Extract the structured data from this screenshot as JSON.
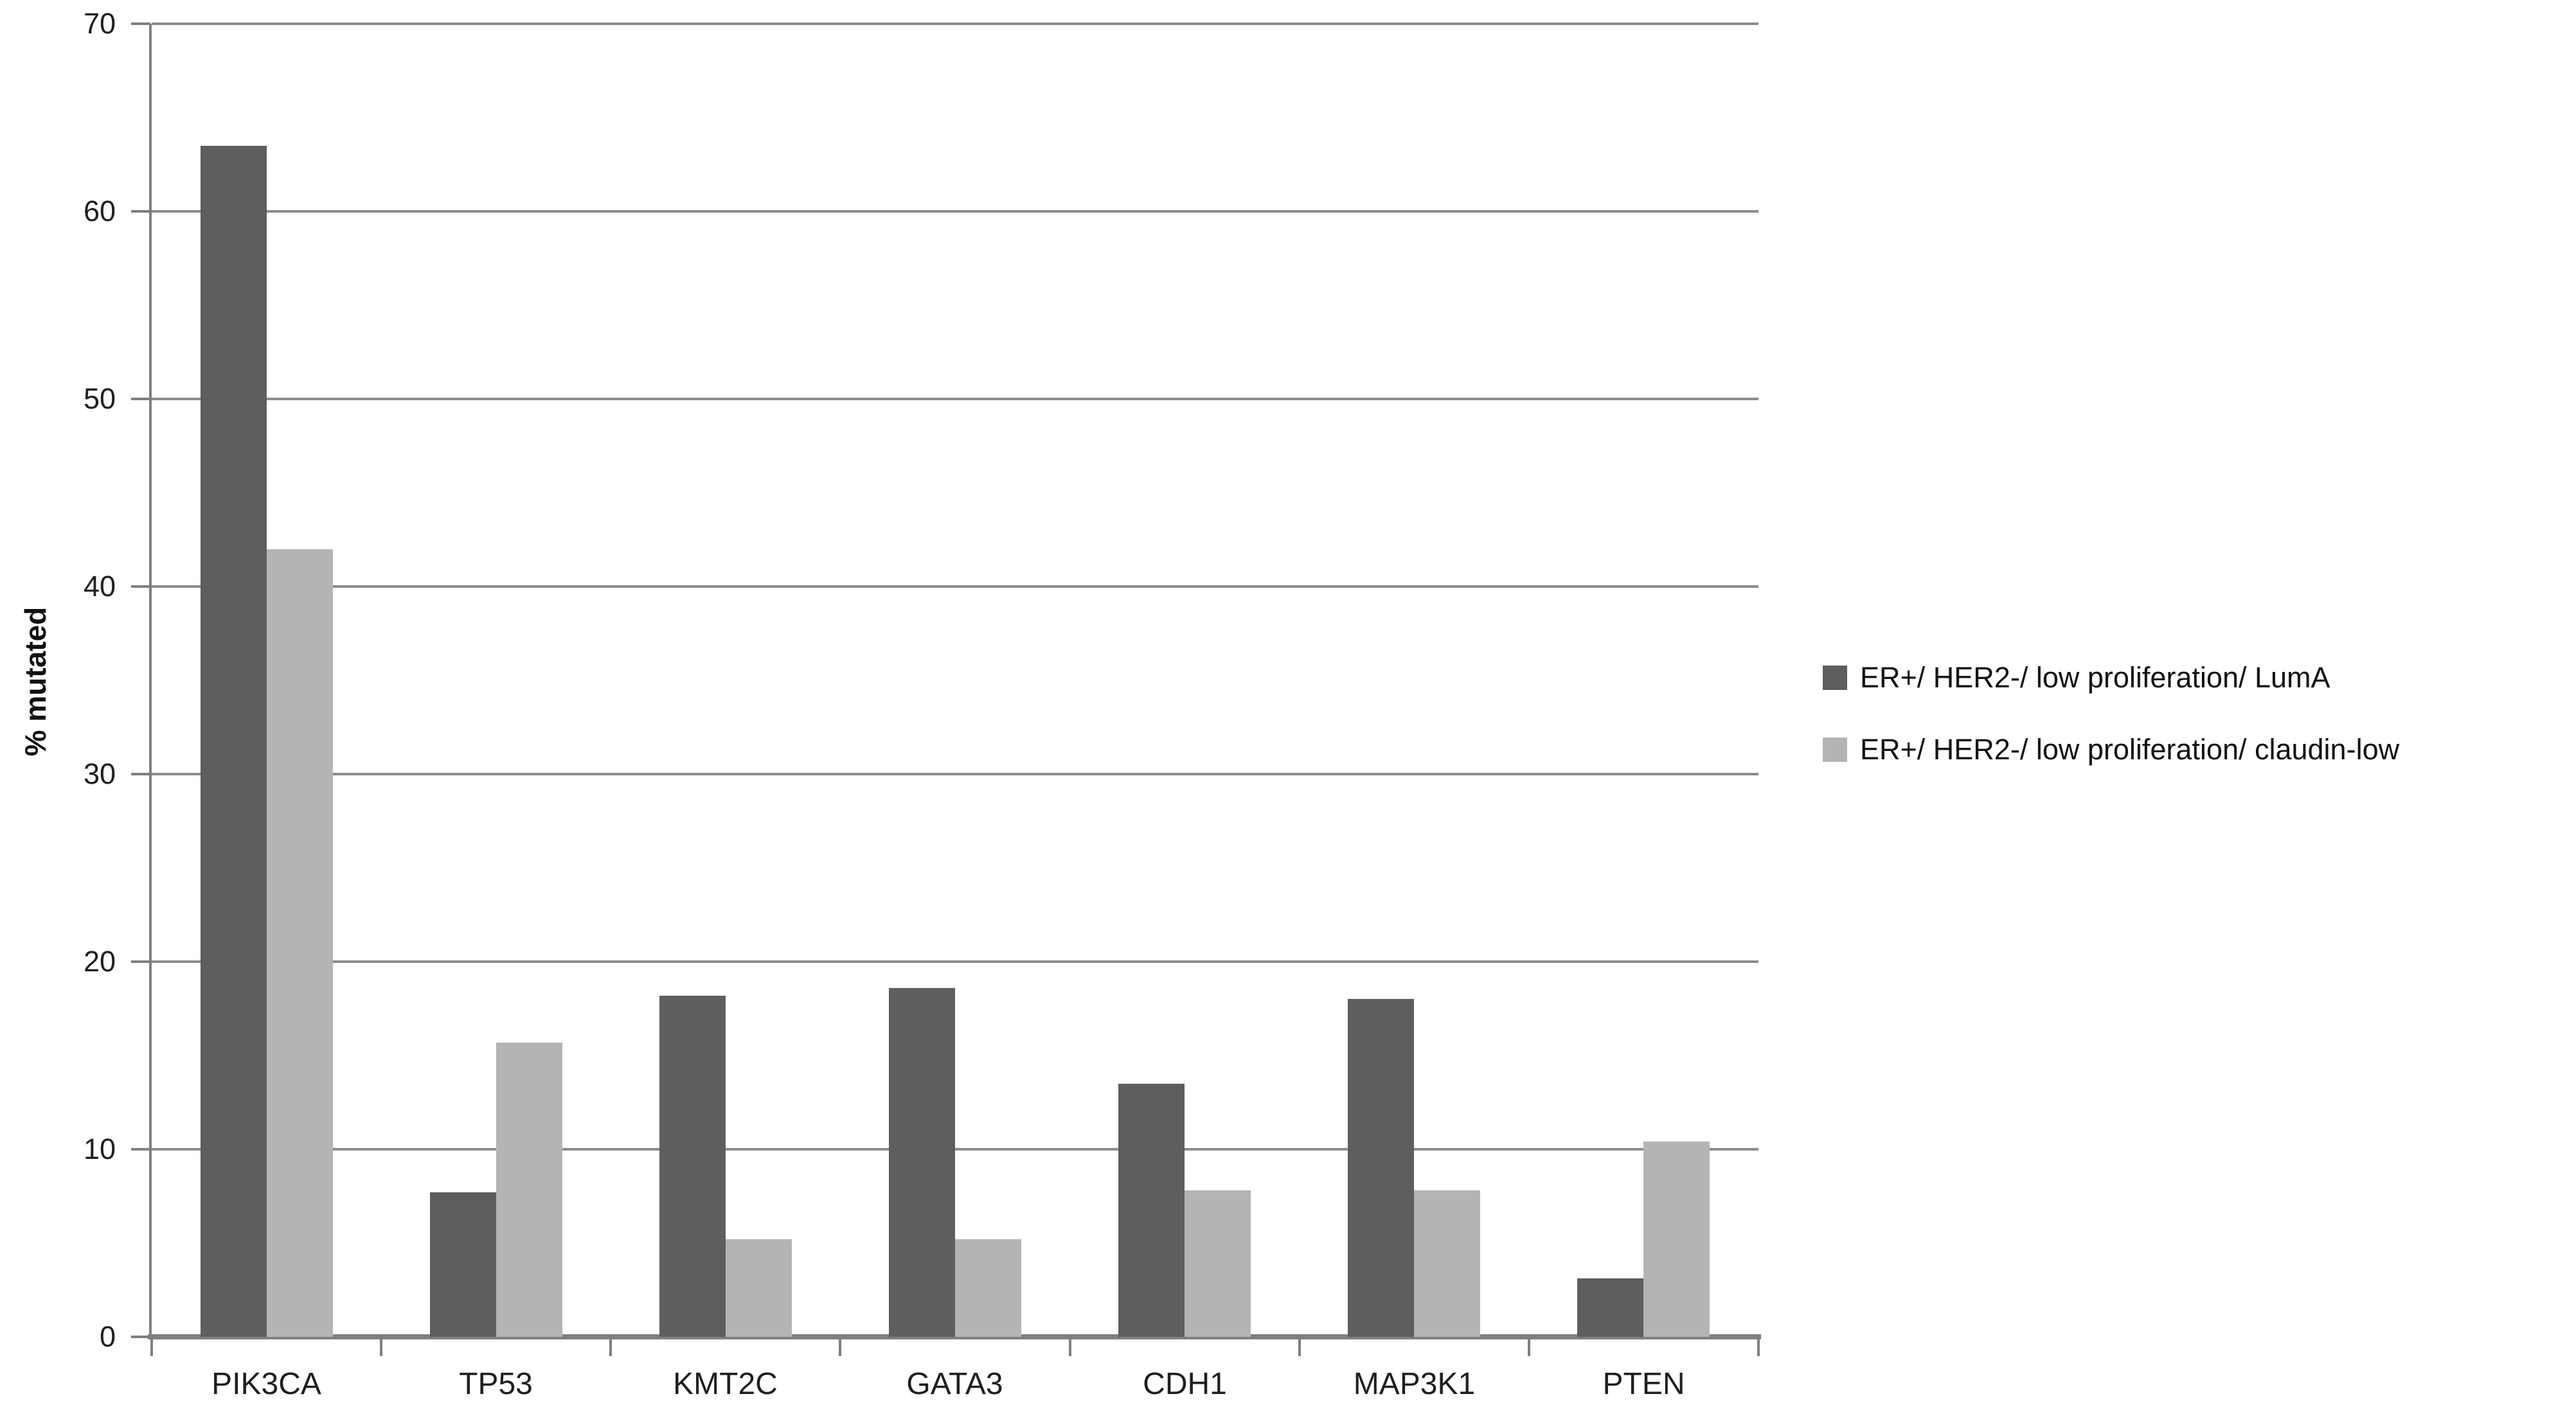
{
  "chart_data": {
    "type": "bar",
    "title": "",
    "xlabel": "",
    "ylabel": "% mutated",
    "ylim": [
      0,
      70
    ],
    "ytick_step": 10,
    "grid": true,
    "legend_position": "right",
    "categories": [
      "PIK3CA",
      "TP53",
      "KMT2C",
      "GATA3",
      "CDH1",
      "MAP3K1",
      "PTEN"
    ],
    "series": [
      {
        "name": "ER+/ HER2-/ low proliferation/ LumA",
        "color": "#5e5e5e",
        "values": [
          63.5,
          7.7,
          18.2,
          18.6,
          13.5,
          18.0,
          3.1
        ]
      },
      {
        "name": "ER+/ HER2-/ low proliferation/ claudin-low",
        "color": "#b4b4b4",
        "values": [
          42.0,
          15.7,
          5.2,
          5.2,
          7.8,
          7.8,
          10.4
        ]
      }
    ],
    "colors": {
      "grid": "#8c8c8c",
      "axis": "#7f7f7f",
      "text": "#1f1f1f"
    }
  }
}
